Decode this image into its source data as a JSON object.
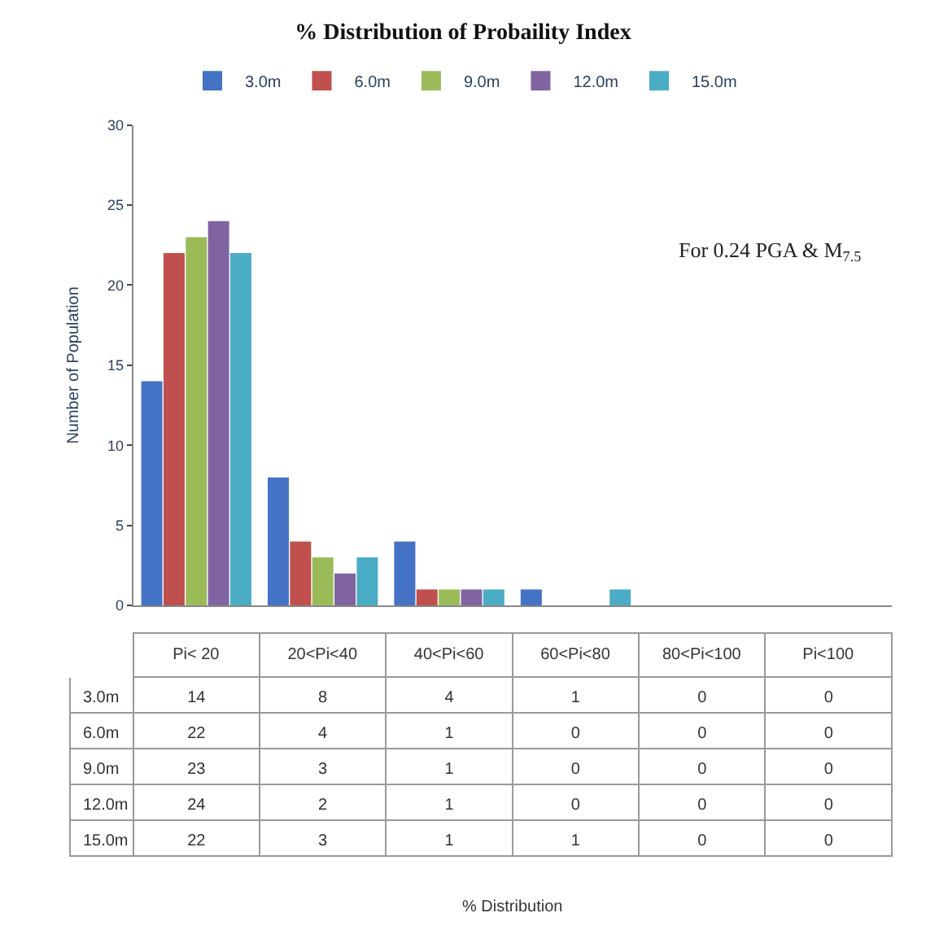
{
  "chart_data": {
    "type": "bar",
    "title": "% Distribution of Probaility Index",
    "ylabel": "Number of Population",
    "annotations": [
      "For 0.24 PGA & M$_{7.5}$",
      "% Distribution"
    ],
    "categories": [
      "Pi< 20",
      "20<Pi<40",
      "40<Pi<60",
      "60<Pi<80",
      "80<Pi<100",
      "Pi<100"
    ],
    "series": [
      {
        "name": "3.0m",
        "color": "#4472c4",
        "values": [
          14,
          8,
          4,
          1,
          0,
          0
        ]
      },
      {
        "name": "6.0m",
        "color": "#c0504d",
        "values": [
          22,
          4,
          1,
          0,
          0,
          0
        ]
      },
      {
        "name": "9.0m",
        "color": "#9bbb59",
        "values": [
          23,
          3,
          1,
          0,
          0,
          0
        ]
      },
      {
        "name": "12.0m",
        "color": "#8064a2",
        "values": [
          24,
          2,
          1,
          0,
          0,
          0
        ]
      },
      {
        "name": "15.0m",
        "color": "#4bacc6",
        "values": [
          22,
          3,
          1,
          1,
          0,
          0
        ]
      }
    ],
    "ylim": [
      0,
      30
    ],
    "yticks": [
      0,
      5,
      10,
      15,
      20,
      25,
      30
    ],
    "grid": false,
    "legend": "top",
    "data_labels": true,
    "tick_labels": "y"
  }
}
